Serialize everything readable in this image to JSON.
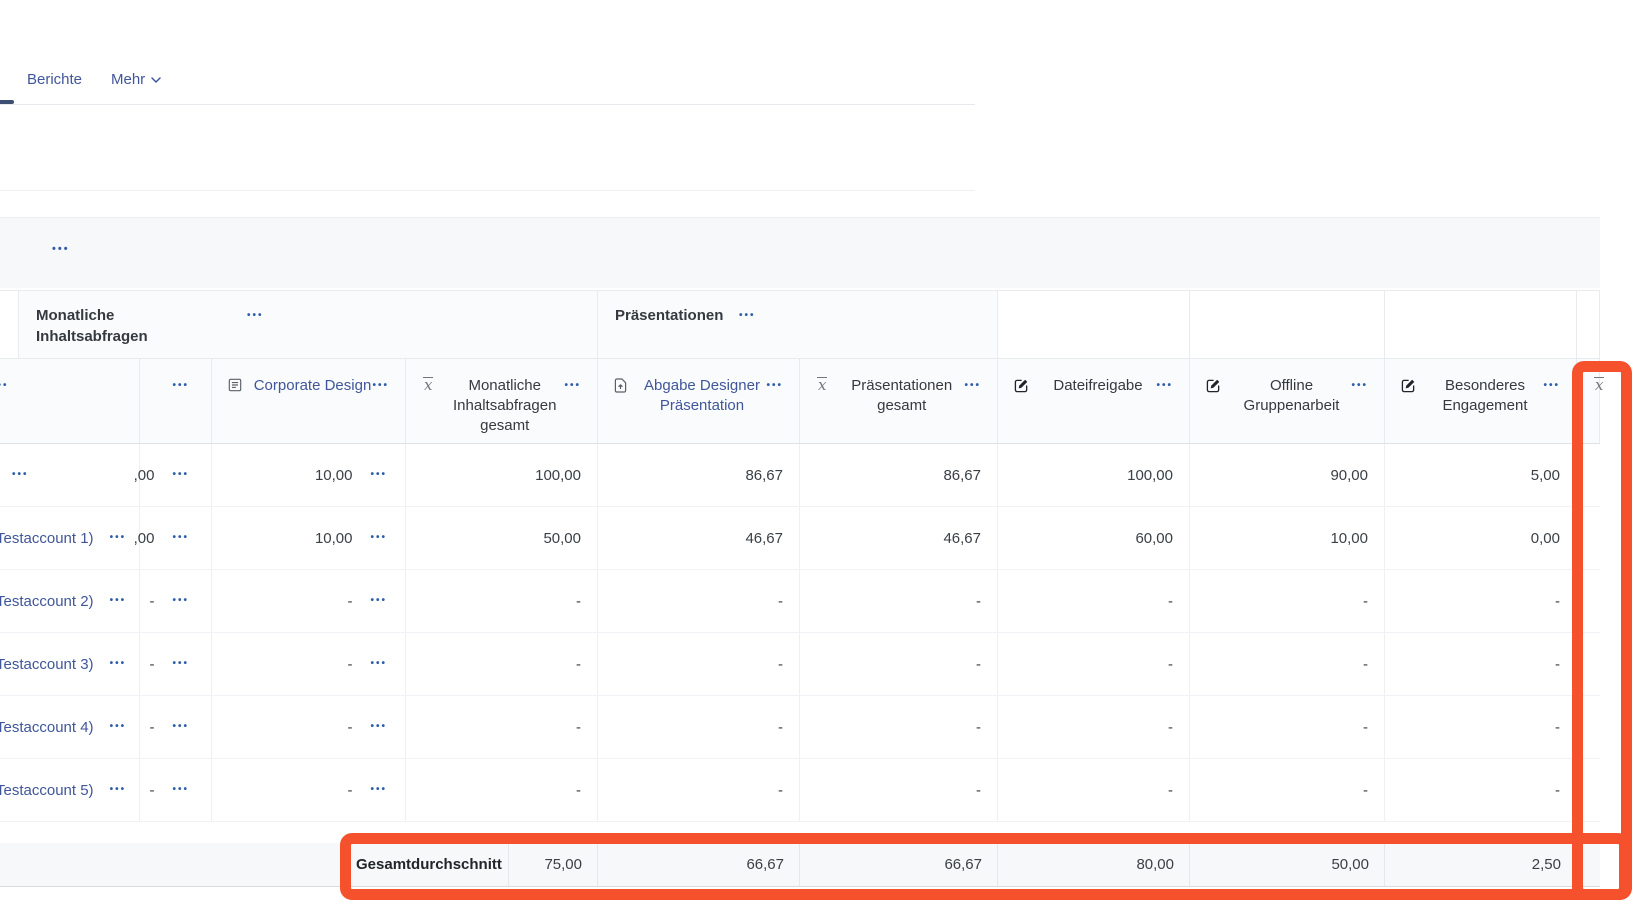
{
  "tabs": {
    "items": [
      {
        "id": "berichte",
        "label": "Berichte",
        "chevron": false
      },
      {
        "id": "mehr",
        "label": "Mehr",
        "chevron": true
      }
    ]
  },
  "toolbar": {
    "menu_glyph": "•••"
  },
  "ui": {
    "menu_glyph": "•••"
  },
  "grade_table": {
    "group_header": [
      {
        "label": "Monatliche Inhaltsabfragen"
      },
      {
        "label": "Präsentationen"
      }
    ],
    "columns": [
      {
        "id": "student",
        "label": "",
        "icon": null,
        "link": false,
        "menu": true
      },
      {
        "id": "grade-clipped",
        "label": "",
        "icon": null,
        "link": false,
        "menu": true
      },
      {
        "id": "corporate-design",
        "label": "Corporate Design",
        "icon": "quiz-icon",
        "link": true,
        "menu": true
      },
      {
        "id": "monatliche-inhaltsabfragen-gesamt",
        "label": "Monatliche Inhaltsabfragen gesamt",
        "icon": "mean-icon",
        "link": false,
        "menu": true
      },
      {
        "id": "abgabe-designer-praesentation",
        "label": "Abgabe Designer Präsentation",
        "icon": "assignment-icon",
        "link": true,
        "menu": true
      },
      {
        "id": "praesentationen-gesamt",
        "label": "Präsentationen gesamt",
        "icon": "mean-icon",
        "link": false,
        "menu": true
      },
      {
        "id": "dateifreigabe",
        "label": "Dateifreigabe",
        "icon": "edit-icon",
        "link": false,
        "menu": true
      },
      {
        "id": "offline-gruppenarbeit",
        "label": "Offline Gruppenarbeit",
        "icon": "edit-icon",
        "link": false,
        "menu": true
      },
      {
        "id": "besonderes-engagement",
        "label": "Besonderes Engagement",
        "icon": "edit-icon",
        "link": false,
        "menu": true
      },
      {
        "id": "gesamt-partial",
        "label": "",
        "icon": "mean-icon",
        "link": false,
        "menu": false
      }
    ],
    "rows": [
      {
        "name": "",
        "cells": [
          ",00",
          "10,00",
          "100,00",
          "86,67",
          "86,67",
          "100,00",
          "90,00",
          "5,00"
        ]
      },
      {
        "name": "Testaccount 1)",
        "cells": [
          ",00",
          "10,00",
          "50,00",
          "46,67",
          "46,67",
          "60,00",
          "10,00",
          "0,00"
        ]
      },
      {
        "name": "Testaccount 2)",
        "cells": [
          "-",
          "-",
          "-",
          "-",
          "-",
          "-",
          "-",
          "-"
        ]
      },
      {
        "name": "Testaccount 3)",
        "cells": [
          "-",
          "-",
          "-",
          "-",
          "-",
          "-",
          "-",
          "-"
        ]
      },
      {
        "name": "Testaccount 4)",
        "cells": [
          "-",
          "-",
          "-",
          "-",
          "-",
          "-",
          "-",
          "-"
        ]
      },
      {
        "name": "Testaccount 5)",
        "cells": [
          "-",
          "-",
          "-",
          "-",
          "-",
          "-",
          "-",
          "-"
        ]
      }
    ],
    "footer": {
      "label": "Gesamtdurchschnitt",
      "values": [
        "75,00",
        "66,67",
        "66,67",
        "80,00",
        "50,00",
        "2,50"
      ]
    }
  },
  "annotation": {
    "highlight_color": "#f4512c"
  },
  "colors": {
    "link": "#40569a",
    "menu_dots": "#2e5ea8",
    "text": "#3a4046",
    "header_bg": "#fafbfc",
    "band_bg": "#f7f8f9"
  }
}
